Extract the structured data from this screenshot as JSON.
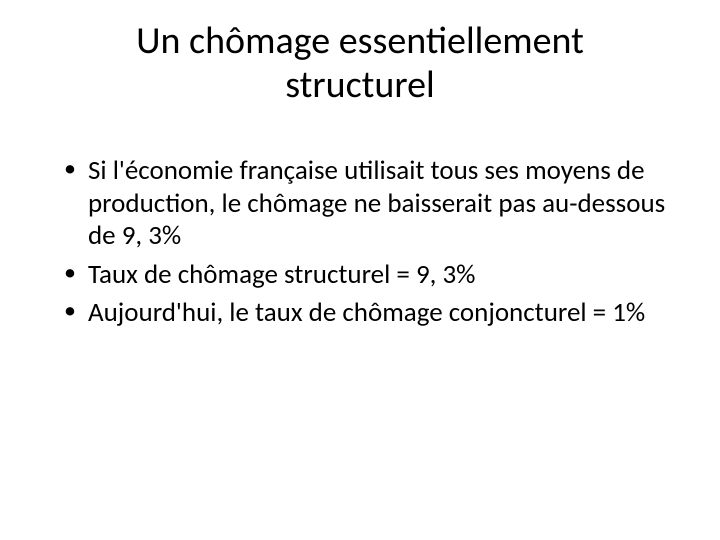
{
  "slide": {
    "title": "Un chômage essentiellement structurel",
    "bullets": [
      "Si l'économie française utilisait tous ses moyens de production, le chômage ne baisserait pas au-dessous de 9, 3%",
      "Taux de chômage structurel = 9, 3%",
      "Aujourd'hui, le taux de chômage conjoncturel = 1%"
    ]
  },
  "style": {
    "background_color": "#ffffff",
    "text_color": "#000000",
    "title_fontsize": 38,
    "body_fontsize": 27,
    "font_family": "Calibri"
  }
}
